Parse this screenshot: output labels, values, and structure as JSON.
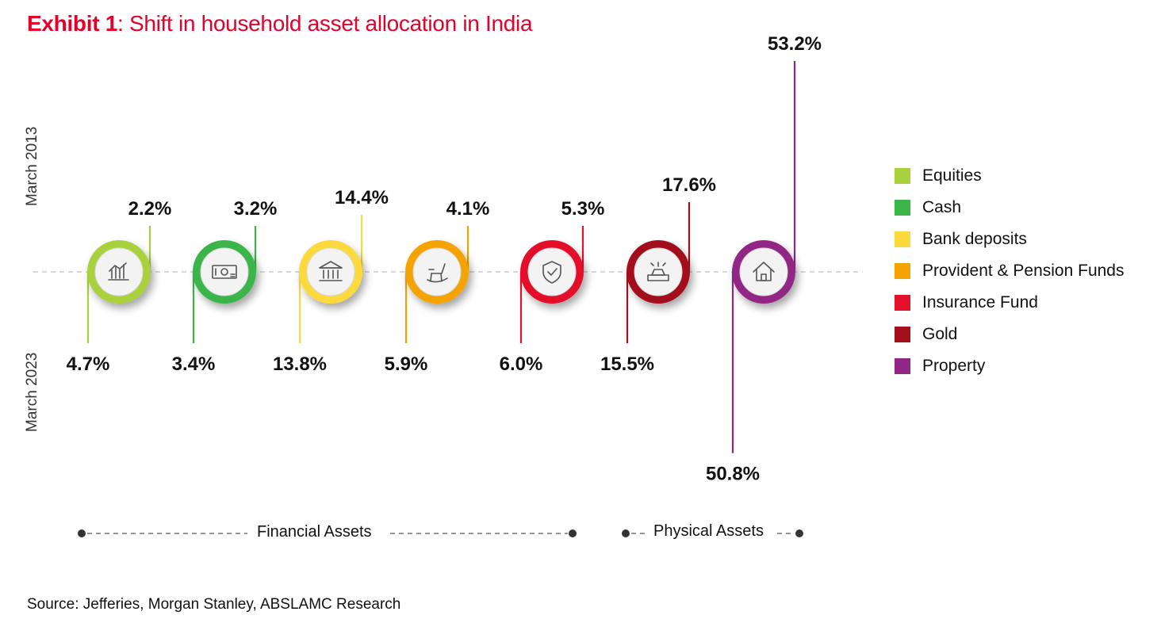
{
  "title": {
    "prefix": "Exhibit 1",
    "rest": ": Shift in household asset allocation in India"
  },
  "chart_data": {
    "type": "bar",
    "title": "Exhibit 1: Shift in household asset allocation in India",
    "unit": "%",
    "series_labels": {
      "top": "March 2013",
      "bottom": "March 2023"
    },
    "categories": [
      "Equities",
      "Cash",
      "Bank deposits",
      "Provident & Pension Funds",
      "Insurance Fund",
      "Gold",
      "Property"
    ],
    "series": [
      {
        "name": "March 2013",
        "values": [
          2.2,
          3.2,
          14.4,
          4.1,
          5.3,
          17.6,
          53.2
        ]
      },
      {
        "name": "March 2023",
        "values": [
          4.7,
          3.4,
          13.8,
          5.9,
          6.0,
          15.5,
          50.8
        ]
      }
    ],
    "value_labels": {
      "March 2013": [
        "2.2%",
        "3.2%",
        "14.4%",
        "4.1%",
        "5.3%",
        "17.6%",
        "53.2%"
      ],
      "March 2023": [
        "4.7%",
        "3.4%",
        "13.8%",
        "5.9%",
        "6.0%",
        "15.5%",
        "50.8%"
      ]
    },
    "colors": [
      "#a8d13d",
      "#3bb54a",
      "#fcd93c",
      "#f5a300",
      "#e4112a",
      "#a30f1b",
      "#912785"
    ],
    "icons": [
      "bar-chart-icon",
      "banknote-icon",
      "bank-building-icon",
      "rocking-chair-icon",
      "shield-check-icon",
      "gold-bars-icon",
      "house-icon"
    ],
    "groups": [
      {
        "label": "Financial Assets",
        "categories": [
          "Equities",
          "Cash",
          "Bank deposits",
          "Provident & Pension Funds",
          "Insurance Fund"
        ]
      },
      {
        "label": "Physical Assets",
        "categories": [
          "Gold",
          "Property"
        ]
      }
    ],
    "legend_position": "right"
  },
  "legend": {
    "items": [
      {
        "label": "Equities",
        "color": "#a8d13d"
      },
      {
        "label": "Cash",
        "color": "#3bb54a"
      },
      {
        "label": "Bank deposits",
        "color": "#fcd93c"
      },
      {
        "label": "Provident & Pension Funds",
        "color": "#f5a300"
      },
      {
        "label": "Insurance Fund",
        "color": "#e4112a"
      },
      {
        "label": "Gold",
        "color": "#a30f1b"
      },
      {
        "label": "Property",
        "color": "#912785"
      }
    ]
  },
  "groups": {
    "financial": "Financial Assets",
    "physical": "Physical Assets"
  },
  "source": "Source: Jefferies, Morgan Stanley, ABSLAMC Research"
}
